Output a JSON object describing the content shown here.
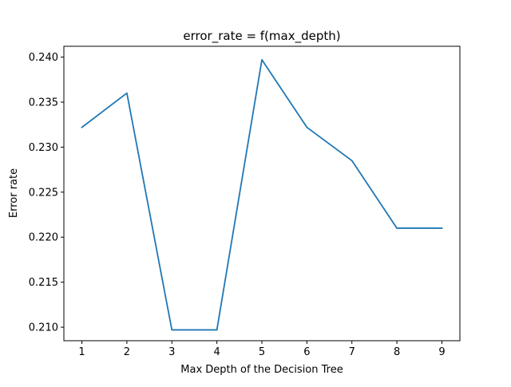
{
  "chart_data": {
    "type": "line",
    "title": "error_rate = f(max_depth)",
    "xlabel": "Max Depth of the Decision Tree",
    "ylabel": "Error rate",
    "x": [
      1,
      2,
      3,
      4,
      5,
      6,
      7,
      8,
      9
    ],
    "series": [
      {
        "values": [
          0.2322,
          0.236,
          0.2097,
          0.2097,
          0.2397,
          0.2322,
          0.2285,
          0.221,
          0.221
        ],
        "color": "#1f77b4"
      }
    ],
    "xlim": [
      0.6,
      9.4
    ],
    "ylim": [
      0.2085,
      0.2412
    ],
    "xticks": [
      "1",
      "2",
      "3",
      "4",
      "5",
      "6",
      "7",
      "8",
      "9"
    ],
    "yticks": [
      "0.210",
      "0.215",
      "0.220",
      "0.225",
      "0.230",
      "0.235",
      "0.240"
    ],
    "grid": false
  }
}
